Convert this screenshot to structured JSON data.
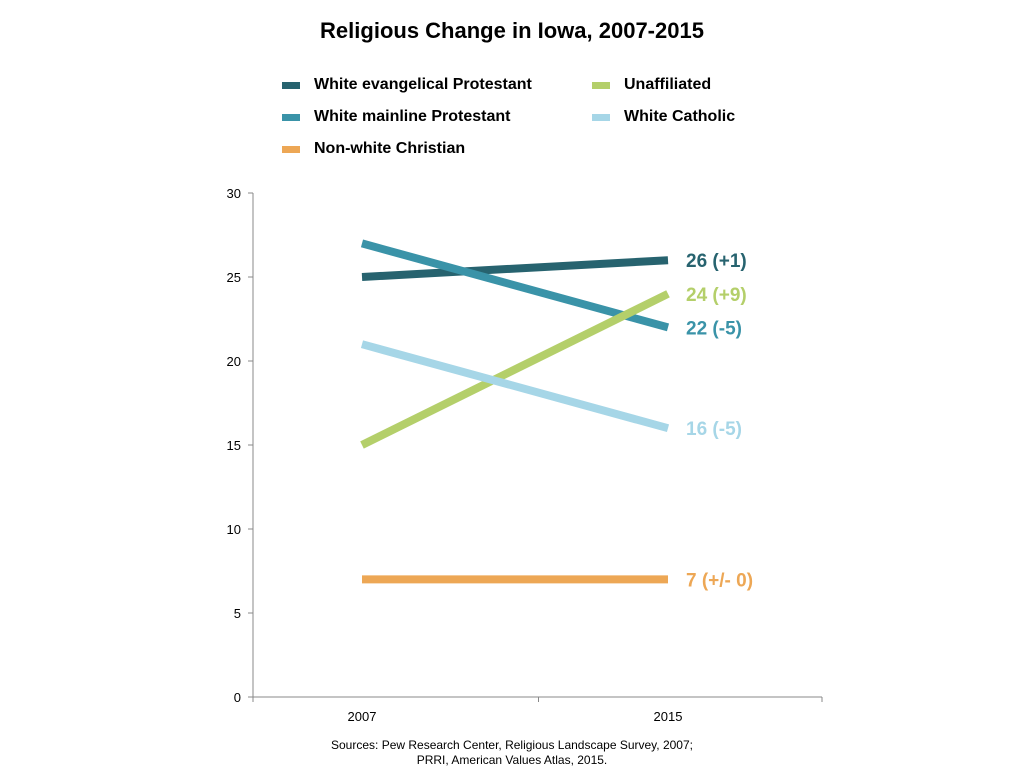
{
  "chart_data": {
    "type": "line",
    "title": "Religious Change in Iowa, 2007-2015",
    "x": [
      "2007",
      "2015"
    ],
    "ylim": [
      0,
      30
    ],
    "yticks": [
      "0",
      "5",
      "10",
      "15",
      "20",
      "25",
      "30"
    ],
    "grid": false,
    "legend_position": "top",
    "series": [
      {
        "name": "White evangelical Protestant",
        "values": [
          25,
          26
        ],
        "label": "26 (+1)",
        "color": "#27636f"
      },
      {
        "name": "White mainline Protestant",
        "values": [
          27,
          22
        ],
        "label": "22 (-5)",
        "color": "#3a93a8"
      },
      {
        "name": "Non-white Christian",
        "values": [
          7,
          7
        ],
        "label": "7 (+/- 0)",
        "color": "#eda755"
      },
      {
        "name": "Unaffiliated",
        "values": [
          15,
          24
        ],
        "label": "24 (+9)",
        "color": "#b4cf6a"
      },
      {
        "name": "White Catholic",
        "values": [
          21,
          16
        ],
        "label": "16 (-5)",
        "color": "#a6d6e7"
      }
    ]
  },
  "sources": {
    "line1": "Sources: Pew Research Center, Religious Landscape Survey, 2007;",
    "line2": "PRRI, American Values Atlas, 2015."
  }
}
